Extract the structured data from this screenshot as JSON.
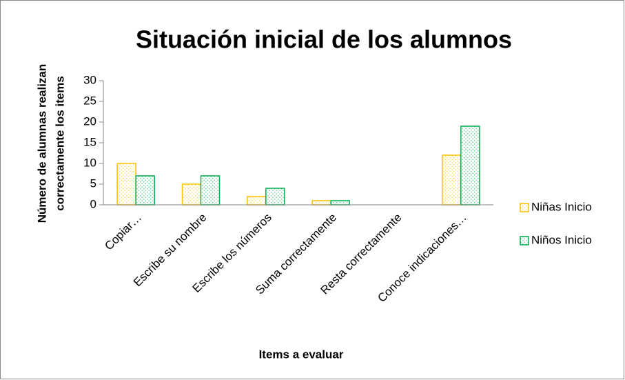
{
  "chart_data": {
    "type": "bar",
    "title": "Situación inicial de los alumnos",
    "xlabel": "Items a evaluar",
    "ylabel": [
      "Número de alumnas realizan",
      "correctamente los items"
    ],
    "categories": [
      "Copiar…",
      "Escribe su nombre",
      "Escribe los números",
      "Suma correctamente",
      "Resta correctamente",
      "Conoce indicaciones…"
    ],
    "series": [
      {
        "name": "Niñas Inicio",
        "color": "#ffc000",
        "values": [
          10,
          5,
          2,
          1,
          0,
          12
        ]
      },
      {
        "name": "Niños Inicio",
        "color": "#00b050",
        "values": [
          7,
          7,
          4,
          1,
          0,
          19
        ]
      }
    ],
    "ylim": [
      0,
      30
    ],
    "yticks": [
      0,
      5,
      10,
      15,
      20,
      25,
      30
    ],
    "legend": "right",
    "grid": false
  }
}
